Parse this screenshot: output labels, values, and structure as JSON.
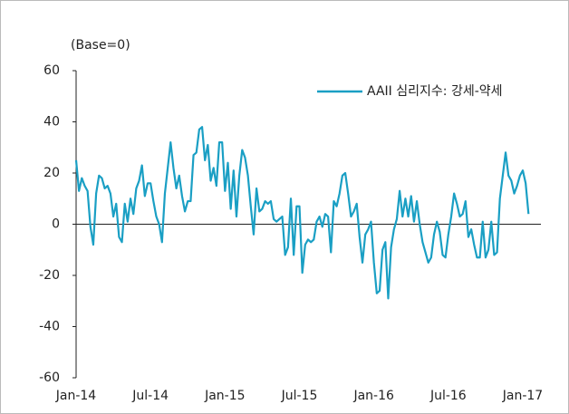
{
  "chart_data": {
    "type": "line",
    "unit_label": "(Base=0)",
    "categories": [
      "Jan-14",
      null,
      null,
      null,
      null,
      null,
      null,
      null,
      null,
      null,
      null,
      null,
      null,
      null,
      null,
      null,
      null,
      null,
      null,
      null,
      null,
      null,
      null,
      null,
      null,
      null,
      "Jul-14",
      null,
      null,
      null,
      null,
      null,
      null,
      null,
      null,
      null,
      null,
      null,
      null,
      null,
      null,
      null,
      null,
      null,
      null,
      null,
      null,
      null,
      null,
      null,
      null,
      null,
      "Jan-15",
      null,
      null,
      null,
      null,
      null,
      null,
      null,
      null,
      null,
      null,
      null,
      null,
      null,
      null,
      null,
      null,
      null,
      null,
      null,
      null,
      null,
      null,
      null,
      null,
      null,
      "Jul-15",
      null,
      null,
      null,
      null,
      null,
      null,
      null,
      null,
      null,
      null,
      null,
      null,
      null,
      null,
      null,
      null,
      null,
      null,
      null,
      null,
      null,
      null,
      null,
      null,
      null,
      "Jan-16",
      null,
      null,
      null,
      null,
      null,
      null,
      null,
      null,
      null,
      null,
      null,
      null,
      null,
      null,
      null,
      null,
      null,
      null,
      null,
      null,
      null,
      null,
      null,
      null,
      null,
      "Jul-16",
      null,
      null,
      null,
      null,
      null,
      null,
      null,
      null,
      null,
      null,
      null,
      null,
      null,
      null,
      null,
      null,
      null,
      null,
      null,
      null,
      null,
      null,
      null,
      null,
      null,
      "Jan-17",
      null,
      null
    ],
    "series": [
      {
        "name": "AAII 심리지수: 강세-약세",
        "color": "#1a9fc4",
        "values": [
          25,
          13,
          18,
          15,
          13,
          -1,
          -8,
          12,
          19,
          18,
          14,
          15,
          12,
          3,
          8,
          -5,
          -7,
          8,
          1,
          10,
          4,
          14,
          17,
          23,
          11,
          16,
          16,
          9,
          3,
          0,
          -7,
          12,
          22,
          32,
          22,
          14,
          19,
          11,
          5,
          9,
          9,
          27,
          28,
          37,
          38,
          25,
          31,
          17,
          22,
          15,
          32,
          32,
          13,
          24,
          6,
          21,
          3,
          19,
          29,
          26,
          19,
          7,
          -4,
          14,
          5,
          6,
          9,
          8,
          9,
          2,
          1,
          2,
          3,
          -12,
          -9,
          10,
          -12,
          7,
          7,
          -19,
          -8,
          -6,
          -7,
          -6,
          1,
          3,
          -1,
          4,
          3,
          -11,
          9,
          7,
          12,
          19,
          20,
          12,
          3,
          5,
          8,
          -5,
          -15,
          -4,
          -2,
          1,
          -15,
          -27,
          -26,
          -10,
          -7,
          -29,
          -9,
          -2,
          2,
          13,
          3,
          10,
          3,
          11,
          1,
          9,
          0,
          -7,
          -11,
          -15,
          -13,
          -4,
          1,
          -3,
          -12,
          -13,
          -4,
          3,
          12,
          8,
          3,
          4,
          9,
          -5,
          -2,
          -8,
          -13,
          -13,
          1,
          -13,
          -10,
          1,
          -12,
          -11,
          10,
          19,
          28,
          19,
          17,
          12,
          15,
          19,
          21,
          16,
          4
        ]
      }
    ],
    "ylim": [
      -60,
      60
    ],
    "yticks": [
      -60,
      -40,
      -20,
      0,
      20,
      40,
      60
    ],
    "legend": "upper right"
  }
}
